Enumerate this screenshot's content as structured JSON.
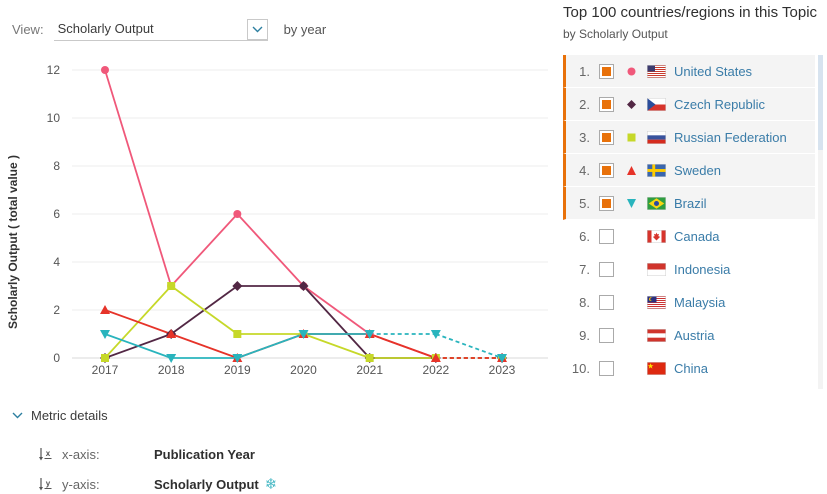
{
  "controls": {
    "view_label": "View:",
    "view_value": "Scholarly Output",
    "suffix": "by year"
  },
  "panel": {
    "title": "Top 100 countries/regions in this Topic",
    "subtitle": "by Scholarly Output",
    "items": [
      {
        "rank": "1.",
        "name": "United States",
        "flag": "us",
        "checked": true,
        "marker": "circle",
        "color": "#f0587a"
      },
      {
        "rank": "2.",
        "name": "Czech Republic",
        "flag": "cz",
        "checked": true,
        "marker": "diamond",
        "color": "#522744"
      },
      {
        "rank": "3.",
        "name": "Russian Federation",
        "flag": "ru",
        "checked": true,
        "marker": "square",
        "color": "#c6d829"
      },
      {
        "rank": "4.",
        "name": "Sweden",
        "flag": "se",
        "checked": true,
        "marker": "triangle-up",
        "color": "#e63329"
      },
      {
        "rank": "5.",
        "name": "Brazil",
        "flag": "br",
        "checked": true,
        "marker": "triangle-down",
        "color": "#29b4bd"
      },
      {
        "rank": "6.",
        "name": "Canada",
        "flag": "ca",
        "checked": false,
        "marker": "",
        "color": ""
      },
      {
        "rank": "7.",
        "name": "Indonesia",
        "flag": "id",
        "checked": false,
        "marker": "",
        "color": ""
      },
      {
        "rank": "8.",
        "name": "Malaysia",
        "flag": "my",
        "checked": false,
        "marker": "",
        "color": ""
      },
      {
        "rank": "9.",
        "name": "Austria",
        "flag": "at",
        "checked": false,
        "marker": "",
        "color": ""
      },
      {
        "rank": "10.",
        "name": "China",
        "flag": "cn",
        "checked": false,
        "marker": "",
        "color": ""
      }
    ]
  },
  "metric_details": {
    "title": "Metric details",
    "rows": [
      {
        "icon": "x-axis-icon",
        "letter": "x",
        "label": "x-axis:",
        "value": "Publication Year",
        "suffix_icon": ""
      },
      {
        "icon": "y-axis-icon",
        "letter": "y",
        "label": "y-axis:",
        "value": "Scholarly Output",
        "suffix_icon": "snowflake"
      }
    ],
    "snowflake_glyph": "❄",
    "accent_color": "#2d7fa0"
  },
  "chart_data": {
    "type": "line",
    "x": [
      2017,
      2018,
      2019,
      2020,
      2021,
      2022,
      2023
    ],
    "title": "",
    "xlabel": "Publication Year",
    "ylabel": "Scholarly Output ( total value )",
    "ylim": [
      0,
      12
    ],
    "yticks": [
      0,
      2,
      4,
      6,
      8,
      10,
      12
    ],
    "grid": true,
    "legend_position": "right-panel",
    "series": [
      {
        "name": "United States",
        "marker": "circle",
        "color": "#f0587a",
        "dash_from": 5,
        "values": [
          12,
          3,
          6,
          3,
          1,
          0,
          0
        ]
      },
      {
        "name": "Czech Republic",
        "marker": "diamond",
        "color": "#522744",
        "dash_from": 5,
        "values": [
          0,
          1,
          3,
          3,
          0,
          0,
          0
        ]
      },
      {
        "name": "Russian Federation",
        "marker": "square",
        "color": "#c6d829",
        "dash_from": 5,
        "values": [
          0,
          3,
          1,
          1,
          0,
          0,
          0
        ]
      },
      {
        "name": "Sweden",
        "marker": "triangle-up",
        "color": "#e63329",
        "dash_from": 5,
        "values": [
          2,
          1,
          0,
          1,
          1,
          0,
          0
        ]
      },
      {
        "name": "Brazil",
        "marker": "triangle-down",
        "color": "#29b4bd",
        "dash_from": 4,
        "values": [
          1,
          0,
          0,
          1,
          1,
          1,
          0
        ]
      }
    ]
  }
}
